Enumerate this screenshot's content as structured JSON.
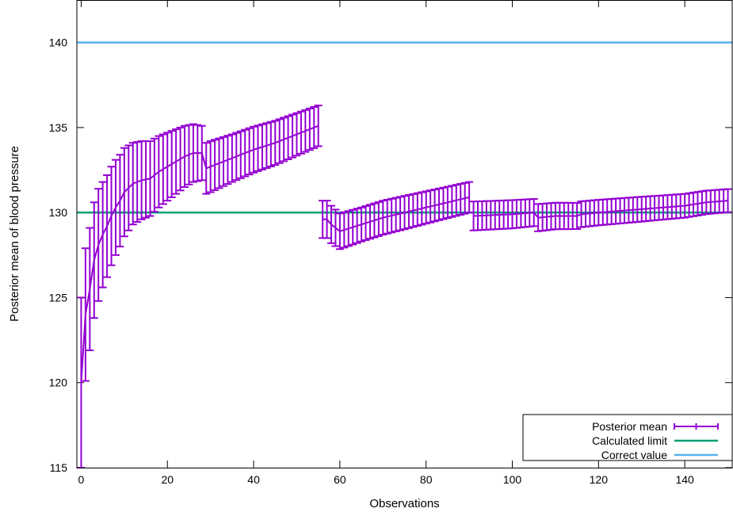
{
  "chart_data": {
    "type": "line",
    "title": "",
    "xlabel": "Observations",
    "ylabel": "Posterior mean of blood pressure",
    "xlim": [
      -1,
      151
    ],
    "ylim": [
      115,
      142.5
    ],
    "xticks": [
      0,
      20,
      40,
      60,
      80,
      100,
      120,
      140
    ],
    "yticks": [
      115,
      120,
      125,
      130,
      135,
      140
    ],
    "grid": false,
    "legend_position": "bottom-right",
    "series": [
      {
        "name": "Posterior mean",
        "style": "errorbars",
        "color": "#9400d3",
        "segments": [
          {
            "n": 56,
            "anchors": [
              [
                0,
                120.0,
                5.0
              ],
              [
                1,
                124.0,
                3.9
              ],
              [
                2,
                125.5,
                3.6
              ],
              [
                3,
                127.2,
                3.4
              ],
              [
                4,
                128.1,
                3.3
              ],
              [
                5,
                128.7,
                3.1
              ],
              [
                6,
                129.2,
                3.0
              ],
              [
                7,
                129.8,
                2.9
              ],
              [
                8,
                130.3,
                2.8
              ],
              [
                9,
                130.7,
                2.7
              ],
              [
                10,
                131.2,
                2.6
              ],
              [
                12,
                131.7,
                2.4
              ],
              [
                14,
                131.9,
                2.3
              ],
              [
                16,
                132.0,
                2.2
              ],
              [
                18,
                132.4,
                2.1
              ],
              [
                20,
                132.7,
                2.0
              ],
              [
                22,
                133.0,
                1.9
              ],
              [
                24,
                133.3,
                1.8
              ],
              [
                26,
                133.5,
                1.7
              ],
              [
                28,
                133.5,
                1.6
              ],
              [
                29,
                132.6,
                1.5
              ],
              [
                30,
                132.7,
                1.5
              ],
              [
                35,
                133.2,
                1.4
              ],
              [
                40,
                133.7,
                1.35
              ],
              [
                45,
                134.1,
                1.3
              ],
              [
                50,
                134.6,
                1.25
              ],
              [
                55,
                135.1,
                1.2
              ]
            ]
          },
          {
            "n": 35,
            "anchors": [
              [
                56,
                129.6,
                1.1
              ],
              [
                57,
                129.6,
                1.1
              ],
              [
                58,
                129.3,
                1.1
              ],
              [
                60,
                128.9,
                1.05
              ],
              [
                65,
                129.3,
                1.0
              ],
              [
                70,
                129.7,
                1.0
              ],
              [
                75,
                130.0,
                0.98
              ],
              [
                80,
                130.3,
                0.95
              ],
              [
                85,
                130.6,
                0.92
              ],
              [
                90,
                130.9,
                0.9
              ]
            ]
          },
          {
            "n": 60,
            "anchors": [
              [
                91,
                129.8,
                0.85
              ],
              [
                100,
                129.9,
                0.83
              ],
              [
                105,
                130.0,
                0.8
              ],
              [
                106,
                129.7,
                0.8
              ],
              [
                110,
                129.8,
                0.78
              ],
              [
                115,
                129.8,
                0.77
              ],
              [
                116,
                129.9,
                0.76
              ],
              [
                120,
                130.0,
                0.75
              ],
              [
                125,
                130.1,
                0.74
              ],
              [
                130,
                130.2,
                0.73
              ],
              [
                135,
                130.3,
                0.71
              ],
              [
                140,
                130.4,
                0.7
              ],
              [
                145,
                130.6,
                0.69
              ],
              [
                150,
                130.7,
                0.68
              ]
            ]
          }
        ]
      },
      {
        "name": "Calculated limit",
        "style": "hline",
        "color": "#009e73",
        "y": 130
      },
      {
        "name": "Correct value",
        "style": "hline",
        "color": "#56b4e9",
        "y": 140
      }
    ]
  }
}
